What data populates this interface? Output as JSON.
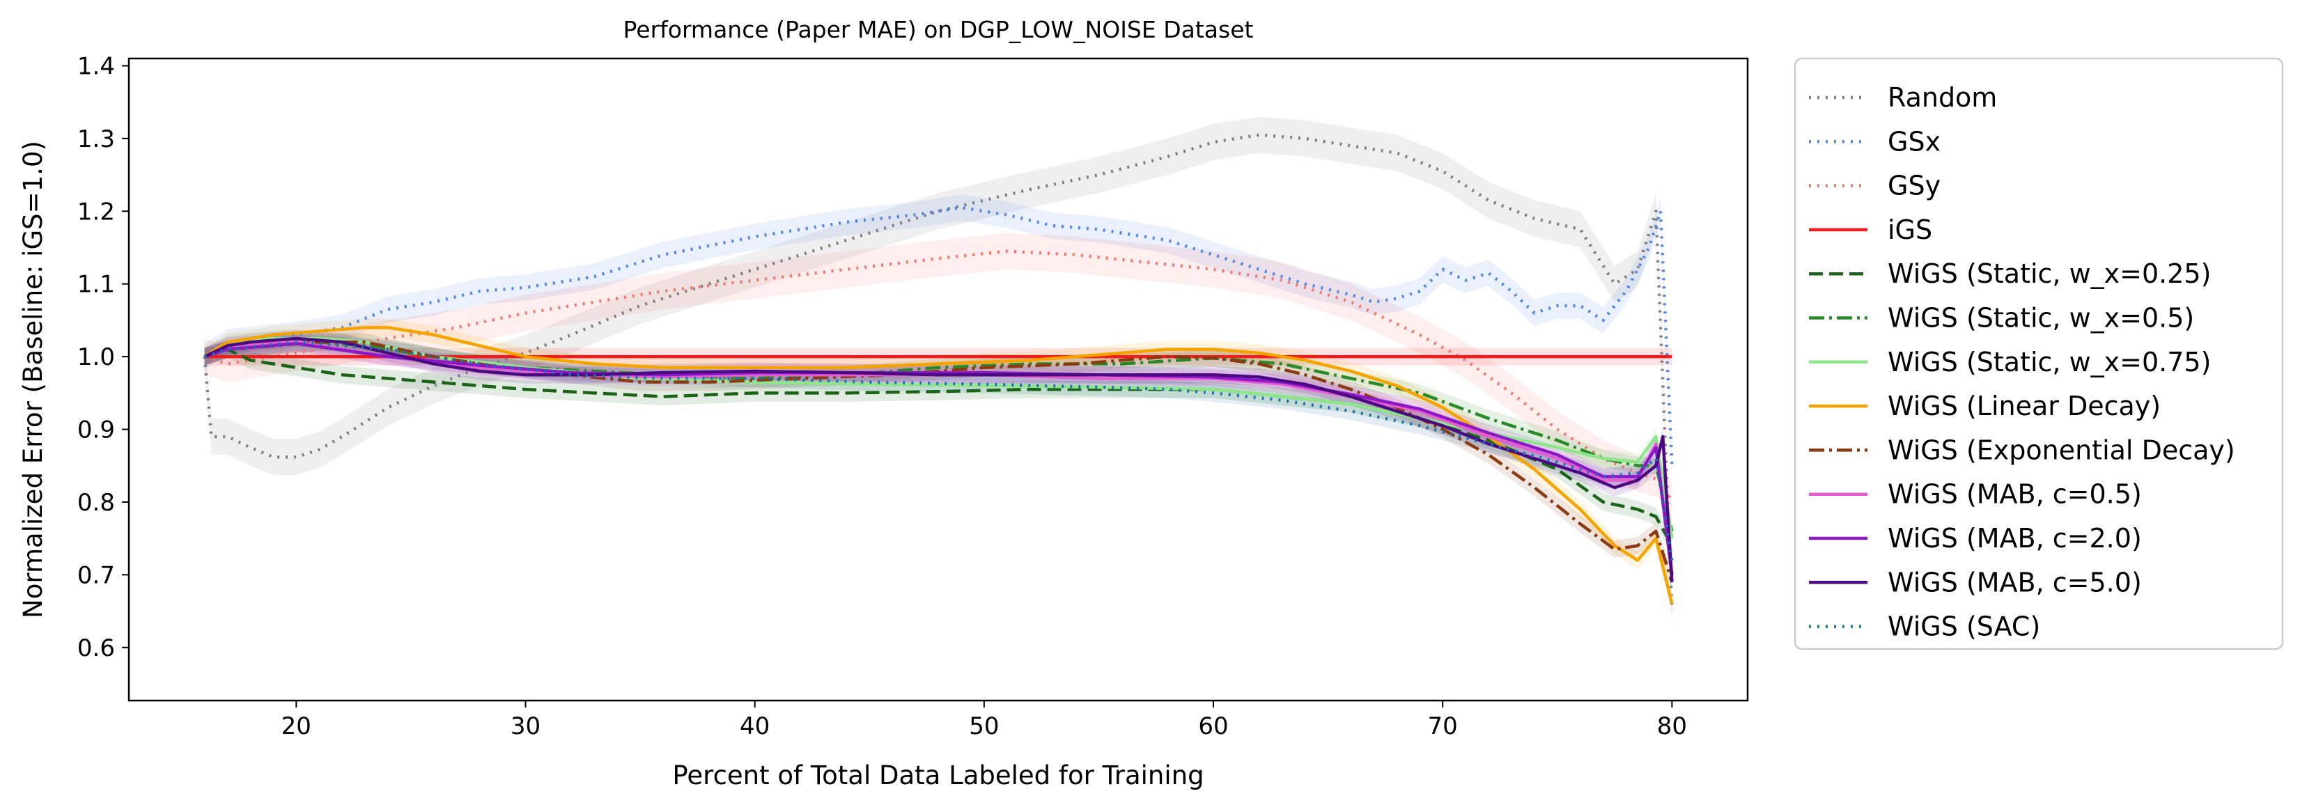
{
  "chart_data": {
    "type": "line",
    "title": "Performance (Paper MAE) on DGP_LOW_NOISE Dataset",
    "xlabel": "Percent of Total Data Labeled for Training",
    "ylabel": "Normalized Error (Baseline: iGS=1.0)",
    "xlim": [
      12.7,
      83.3
    ],
    "ylim": [
      0.527,
      1.41
    ],
    "xticks": [
      20,
      30,
      40,
      50,
      60,
      70,
      80
    ],
    "yticks": [
      0.6,
      0.7,
      0.8,
      0.9,
      1.0,
      1.1,
      1.2,
      1.3,
      1.4
    ],
    "ytick_labels": [
      "0.6",
      "0.7",
      "0.8",
      "0.9",
      "1.0",
      "1.1",
      "1.2",
      "1.3",
      "1.4"
    ],
    "legend_position": "outside-right",
    "series": [
      {
        "name": "Random",
        "color": "#7f7f7f",
        "dash": "dotted",
        "x": [
          16,
          16.3,
          17,
          18,
          19,
          20,
          21,
          22,
          24,
          26,
          28,
          30,
          32,
          35,
          38,
          40,
          42,
          45,
          48,
          50,
          52,
          55,
          58,
          60,
          62,
          64,
          66,
          68,
          70,
          72,
          74,
          76,
          77.5,
          78.5,
          79.3,
          80
        ],
        "y": [
          1.0,
          0.89,
          0.89,
          0.875,
          0.862,
          0.862,
          0.872,
          0.89,
          0.93,
          0.96,
          0.985,
          1.005,
          1.03,
          1.07,
          1.1,
          1.12,
          1.14,
          1.17,
          1.2,
          1.215,
          1.23,
          1.25,
          1.275,
          1.295,
          1.305,
          1.3,
          1.29,
          1.28,
          1.255,
          1.215,
          1.19,
          1.175,
          1.1,
          1.12,
          1.2,
          0.65
        ]
      },
      {
        "name": "GSx",
        "color": "#4f86e8",
        "dash": "dotted",
        "x": [
          16,
          17,
          20,
          22,
          24,
          26,
          28,
          30,
          33,
          36,
          40,
          44,
          47,
          49,
          51,
          53,
          55,
          58,
          60,
          62,
          64,
          66,
          67,
          68,
          69,
          70,
          71,
          72,
          73,
          74,
          75,
          76,
          77,
          78,
          79,
          79.5,
          80
        ],
        "y": [
          1.0,
          1.02,
          1.03,
          1.04,
          1.065,
          1.075,
          1.09,
          1.095,
          1.11,
          1.14,
          1.165,
          1.185,
          1.195,
          1.205,
          1.195,
          1.18,
          1.175,
          1.16,
          1.14,
          1.12,
          1.1,
          1.085,
          1.075,
          1.08,
          1.09,
          1.12,
          1.105,
          1.115,
          1.09,
          1.06,
          1.07,
          1.07,
          1.05,
          1.09,
          1.15,
          1.2,
          0.85
        ]
      },
      {
        "name": "GSy",
        "color": "#f4766b",
        "dash": "dotted",
        "x": [
          16,
          17,
          19,
          21,
          24,
          27,
          30,
          33,
          36,
          40,
          44,
          48,
          51,
          54,
          57,
          60,
          63,
          66,
          69,
          71,
          73,
          75,
          77,
          78.5,
          79.5,
          80
        ],
        "y": [
          1.0,
          0.99,
          1.0,
          1.01,
          1.025,
          1.04,
          1.06,
          1.075,
          1.09,
          1.105,
          1.12,
          1.135,
          1.145,
          1.14,
          1.13,
          1.12,
          1.105,
          1.075,
          1.03,
          0.995,
          0.95,
          0.9,
          0.86,
          0.84,
          0.83,
          0.8
        ]
      },
      {
        "name": "iGS",
        "color": "#ee1c1c",
        "dash": "solid",
        "x": [
          16,
          80
        ],
        "y": [
          1.0,
          1.0
        ]
      },
      {
        "name": "WiGS (Static, w_x=0.25)",
        "color": "#1a6317",
        "dash": "dashed",
        "x": [
          16,
          17,
          18,
          20,
          22,
          24,
          26,
          28,
          30,
          33,
          36,
          40,
          44,
          48,
          52,
          56,
          60,
          63,
          66,
          69,
          72,
          75,
          77,
          78.5,
          79.3,
          80
        ],
        "y": [
          1.0,
          1.01,
          0.995,
          0.985,
          0.975,
          0.97,
          0.965,
          0.96,
          0.955,
          0.95,
          0.945,
          0.95,
          0.95,
          0.952,
          0.955,
          0.955,
          0.955,
          0.945,
          0.935,
          0.915,
          0.885,
          0.845,
          0.8,
          0.79,
          0.78,
          0.74
        ]
      },
      {
        "name": "WiGS (Static, w_x=0.5)",
        "color": "#2a8a2a",
        "dash": "dashdot",
        "x": [
          16,
          17,
          19,
          21,
          23,
          25,
          27,
          30,
          33,
          36,
          40,
          44,
          48,
          52,
          56,
          60,
          63,
          66,
          69,
          72,
          75,
          77,
          78.5,
          79.3,
          80
        ],
        "y": [
          1.0,
          1.01,
          1.015,
          1.02,
          1.015,
          1.005,
          0.995,
          0.985,
          0.98,
          0.975,
          0.97,
          0.975,
          0.985,
          0.99,
          0.99,
          0.998,
          0.99,
          0.97,
          0.95,
          0.915,
          0.885,
          0.86,
          0.85,
          0.85,
          0.76
        ]
      },
      {
        "name": "WiGS (Static, w_x=0.75)",
        "color": "#8ee68a",
        "dash": "solid",
        "x": [
          16,
          17,
          19,
          21,
          23,
          26,
          30,
          35,
          40,
          45,
          50,
          55,
          60,
          63,
          66,
          69,
          72,
          75,
          77,
          78.5,
          79.3,
          80
        ],
        "y": [
          1.0,
          1.02,
          1.025,
          1.025,
          1.02,
          1.0,
          0.985,
          0.97,
          0.965,
          0.962,
          0.96,
          0.958,
          0.955,
          0.945,
          0.935,
          0.915,
          0.895,
          0.875,
          0.86,
          0.855,
          0.89,
          0.75
        ]
      },
      {
        "name": "WiGS (Linear Decay)",
        "color": "#f5a300",
        "dash": "solid",
        "x": [
          16,
          17,
          19,
          21,
          23,
          24,
          26,
          28,
          30,
          33,
          36,
          40,
          44,
          48,
          52,
          56,
          58,
          60,
          62,
          64,
          66,
          68,
          70,
          72,
          74,
          76,
          77.5,
          78.5,
          79.3,
          80
        ],
        "y": [
          1.0,
          1.02,
          1.03,
          1.035,
          1.04,
          1.04,
          1.03,
          1.015,
          1.0,
          0.99,
          0.985,
          0.985,
          0.985,
          0.99,
          0.995,
          1.005,
          1.01,
          1.01,
          1.005,
          0.995,
          0.98,
          0.96,
          0.93,
          0.89,
          0.845,
          0.79,
          0.74,
          0.72,
          0.75,
          0.66
        ]
      },
      {
        "name": "WiGS (Exponential Decay)",
        "color": "#8b3a12",
        "dash": "dashdot",
        "x": [
          16,
          17,
          19,
          21,
          23,
          26,
          29,
          32,
          35,
          38,
          42,
          46,
          50,
          54,
          58,
          60,
          62,
          64,
          66,
          68,
          70,
          72,
          74,
          76,
          77.5,
          78.5,
          79.3,
          80
        ],
        "y": [
          1.0,
          1.01,
          1.015,
          1.02,
          1.02,
          1.0,
          0.985,
          0.975,
          0.965,
          0.965,
          0.97,
          0.975,
          0.985,
          0.99,
          1.0,
          0.998,
          0.99,
          0.975,
          0.955,
          0.93,
          0.9,
          0.865,
          0.82,
          0.77,
          0.735,
          0.74,
          0.76,
          0.69
        ]
      },
      {
        "name": "WiGS (MAB, c=0.5)",
        "color": "#e55ed1",
        "dash": "solid",
        "x": [
          16,
          17,
          20,
          24,
          28,
          32,
          36,
          40,
          45,
          50,
          55,
          60,
          63,
          66,
          69,
          72,
          75,
          77,
          78.5,
          79.3,
          80
        ],
        "y": [
          1.0,
          1.015,
          1.02,
          1.0,
          0.985,
          0.975,
          0.972,
          0.975,
          0.975,
          0.975,
          0.97,
          0.97,
          0.962,
          0.945,
          0.925,
          0.89,
          0.86,
          0.83,
          0.83,
          0.88,
          0.7
        ]
      },
      {
        "name": "WiGS (MAB, c=2.0)",
        "color": "#8c18c8",
        "dash": "solid",
        "x": [
          16,
          17,
          20,
          24,
          28,
          32,
          36,
          40,
          45,
          50,
          55,
          60,
          63,
          66,
          69,
          72,
          75,
          77,
          78.5,
          79.3,
          80
        ],
        "y": [
          1.0,
          1.01,
          1.018,
          1.0,
          0.988,
          0.978,
          0.975,
          0.978,
          0.978,
          0.978,
          0.975,
          0.972,
          0.965,
          0.948,
          0.928,
          0.895,
          0.865,
          0.835,
          0.835,
          0.875,
          0.7
        ]
      },
      {
        "name": "WiGS (MAB, c=5.0)",
        "color": "#4b0a82",
        "dash": "solid",
        "x": [
          16,
          17,
          18,
          20,
          22,
          24,
          26,
          28,
          30,
          33,
          36,
          40,
          44,
          48,
          52,
          56,
          60,
          62,
          64,
          66,
          68,
          70,
          72,
          74,
          76,
          77.5,
          78.5,
          79.3,
          79.6,
          80
        ],
        "y": [
          1.0,
          1.015,
          1.02,
          1.025,
          1.02,
          1.005,
          0.99,
          0.98,
          0.975,
          0.975,
          0.978,
          0.98,
          0.978,
          0.975,
          0.975,
          0.975,
          0.975,
          0.972,
          0.962,
          0.945,
          0.925,
          0.905,
          0.88,
          0.86,
          0.84,
          0.82,
          0.83,
          0.85,
          0.89,
          0.69
        ]
      },
      {
        "name": "WiGS (SAC)",
        "color": "#1f6fb4",
        "dash": "dotted",
        "x": [
          16,
          17,
          20,
          24,
          28,
          32,
          36,
          40,
          45,
          50,
          55,
          58,
          60,
          63,
          66,
          69,
          72,
          75,
          77,
          78.5,
          79.3,
          80
        ],
        "y": [
          1.0,
          1.01,
          1.02,
          1.01,
          0.99,
          0.975,
          0.97,
          0.97,
          0.965,
          0.962,
          0.958,
          0.955,
          0.95,
          0.94,
          0.925,
          0.905,
          0.88,
          0.855,
          0.835,
          0.84,
          0.86,
          0.72
        ]
      }
    ]
  }
}
